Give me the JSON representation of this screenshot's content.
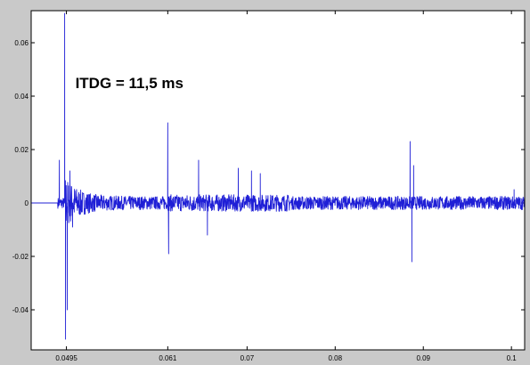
{
  "chart_data": {
    "type": "line",
    "title": "",
    "xlabel": "",
    "ylabel": "",
    "xlim": [
      0.0455,
      0.1015
    ],
    "ylim": [
      -0.055,
      0.072
    ],
    "x_ticks": [
      {
        "value": 0.0495,
        "label": "0.0495"
      },
      {
        "value": 0.061,
        "label": "0.061"
      },
      {
        "value": 0.07,
        "label": "0.07"
      },
      {
        "value": 0.08,
        "label": "0.08"
      },
      {
        "value": 0.09,
        "label": "0.09"
      },
      {
        "value": 0.1,
        "label": "0.1"
      }
    ],
    "y_ticks": [
      {
        "value": 0.06,
        "label": "0.06"
      },
      {
        "value": 0.04,
        "label": "0.04"
      },
      {
        "value": 0.02,
        "label": "0.02"
      },
      {
        "value": 0,
        "label": "0"
      },
      {
        "value": -0.02,
        "label": "-0.02"
      },
      {
        "value": -0.04,
        "label": "-0.04"
      }
    ],
    "grid": false,
    "line_color": "#1f1fd6",
    "annotation": {
      "text": "ITDG = 11,5 ms",
      "x": 0.0495,
      "y": 0.043
    },
    "series": [
      {
        "baseline_until": 0.0485,
        "impulses": [
          {
            "x": 0.0487,
            "y": 0.016
          },
          {
            "x": 0.0493,
            "y": 0.071
          },
          {
            "x": 0.0494,
            "y": -0.051
          },
          {
            "x": 0.0496,
            "y": -0.04
          },
          {
            "x": 0.0499,
            "y": 0.012
          },
          {
            "x": 0.0502,
            "y": -0.009
          },
          {
            "x": 0.061,
            "y": 0.03
          },
          {
            "x": 0.0611,
            "y": -0.019
          },
          {
            "x": 0.0645,
            "y": 0.016
          },
          {
            "x": 0.0655,
            "y": -0.012
          },
          {
            "x": 0.069,
            "y": 0.013
          },
          {
            "x": 0.0705,
            "y": 0.012
          },
          {
            "x": 0.0715,
            "y": 0.011
          },
          {
            "x": 0.0885,
            "y": 0.023
          },
          {
            "x": 0.0887,
            "y": -0.022
          },
          {
            "x": 0.0889,
            "y": 0.014
          },
          {
            "x": 0.1003,
            "y": 0.005
          }
        ]
      }
    ]
  }
}
